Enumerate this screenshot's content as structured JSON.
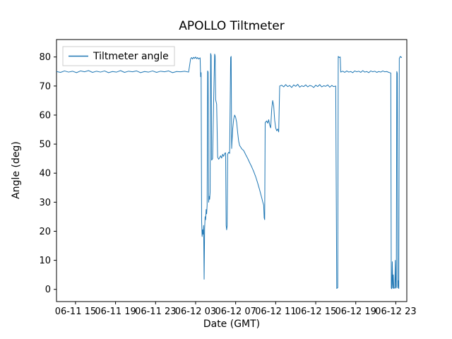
{
  "figure": {
    "title": "APOLLO Tiltmeter",
    "xlabel": "Date (GMT)",
    "ylabel": "Angle (deg)",
    "legend_label": "Tiltmeter angle",
    "line_color": "#1f77b4",
    "legend_border_color": "#cccccc",
    "axes_color": "#000000",
    "background_color": "#ffffff"
  },
  "chart_data": {
    "type": "line",
    "title": "APOLLO Tiltmeter",
    "xlabel": "Date (GMT)",
    "ylabel": "Angle (deg)",
    "legend": [
      "Tiltmeter angle"
    ],
    "legend_position": "upper left",
    "grid": false,
    "x_tick_labels": [
      "06-11 15",
      "06-11 19",
      "06-11 23",
      "06-12 03",
      "06-12 07",
      "06-12 11",
      "06-12 15",
      "06-12 19",
      "06-12 23"
    ],
    "x_tick_positions_hours": [
      0,
      4,
      8,
      12,
      16,
      20,
      24,
      28,
      32
    ],
    "x_unit": "hours relative to first x tick (06-11 15)",
    "xlim_hours": [
      -1.9,
      33.1
    ],
    "y_ticks": [
      0,
      10,
      20,
      30,
      40,
      50,
      60,
      70,
      80
    ],
    "ylim": [
      -4.2,
      86
    ],
    "series": [
      {
        "name": "Tiltmeter angle",
        "color": "#1f77b4",
        "points": [
          [
            -1.9,
            75.0
          ],
          [
            -1.5,
            74.7
          ],
          [
            -1.1,
            75.2
          ],
          [
            -0.7,
            74.8
          ],
          [
            -0.3,
            75.1
          ],
          [
            0.1,
            74.6
          ],
          [
            0.5,
            75.2
          ],
          [
            0.9,
            74.9
          ],
          [
            1.3,
            75.3
          ],
          [
            1.7,
            74.7
          ],
          [
            2.1,
            75.1
          ],
          [
            2.5,
            74.8
          ],
          [
            2.9,
            75.2
          ],
          [
            3.3,
            74.6
          ],
          [
            3.7,
            75.0
          ],
          [
            4.1,
            74.8
          ],
          [
            4.5,
            75.3
          ],
          [
            4.9,
            74.7
          ],
          [
            5.3,
            75.1
          ],
          [
            5.7,
            74.9
          ],
          [
            6.1,
            75.2
          ],
          [
            6.5,
            74.6
          ],
          [
            6.9,
            75.0
          ],
          [
            7.3,
            74.8
          ],
          [
            7.7,
            75.2
          ],
          [
            8.1,
            74.7
          ],
          [
            8.5,
            75.1
          ],
          [
            8.9,
            74.9
          ],
          [
            9.3,
            75.2
          ],
          [
            9.7,
            74.6
          ],
          [
            10.1,
            75.0
          ],
          [
            10.5,
            74.9
          ],
          [
            10.9,
            75.1
          ],
          [
            11.3,
            74.8
          ],
          [
            11.5,
            79.4
          ],
          [
            11.6,
            79.8
          ],
          [
            11.7,
            79.3
          ],
          [
            11.8,
            79.9
          ],
          [
            11.9,
            79.5
          ],
          [
            12.0,
            80.0
          ],
          [
            12.1,
            79.4
          ],
          [
            12.2,
            79.8
          ],
          [
            12.3,
            79.3
          ],
          [
            12.45,
            79.7
          ],
          [
            12.5,
            73.2
          ],
          [
            12.55,
            74.6
          ],
          [
            12.6,
            23.5
          ],
          [
            12.65,
            18.2
          ],
          [
            12.7,
            20.5
          ],
          [
            12.75,
            19.0
          ],
          [
            12.8,
            22.0
          ],
          [
            12.85,
            3.5
          ],
          [
            12.9,
            21.0
          ],
          [
            12.95,
            25.0
          ],
          [
            13.0,
            24.0
          ],
          [
            13.05,
            27.5
          ],
          [
            13.1,
            26.0
          ],
          [
            13.15,
            29.0
          ],
          [
            13.2,
            75.2
          ],
          [
            13.25,
            74.8
          ],
          [
            13.3,
            30.0
          ],
          [
            13.35,
            32.0
          ],
          [
            13.4,
            31.0
          ],
          [
            13.45,
            33.5
          ],
          [
            13.5,
            81.2
          ],
          [
            13.55,
            80.6
          ],
          [
            13.6,
            44.5
          ],
          [
            13.7,
            45.0
          ],
          [
            13.8,
            65.0
          ],
          [
            13.9,
            81.0
          ],
          [
            13.95,
            80.4
          ],
          [
            14.0,
            65.3
          ],
          [
            14.1,
            63.8
          ],
          [
            14.2,
            45.5
          ],
          [
            14.3,
            44.8
          ],
          [
            14.4,
            45.3
          ],
          [
            14.5,
            46.0
          ],
          [
            14.6,
            45.2
          ],
          [
            14.7,
            46.5
          ],
          [
            14.8,
            45.8
          ],
          [
            14.9,
            46.8
          ],
          [
            15.0,
            47.0
          ],
          [
            15.05,
            22.0
          ],
          [
            15.1,
            20.5
          ],
          [
            15.15,
            21.8
          ],
          [
            15.2,
            46.5
          ],
          [
            15.3,
            47.2
          ],
          [
            15.4,
            46.8
          ],
          [
            15.5,
            79.8
          ],
          [
            15.55,
            80.2
          ],
          [
            15.6,
            48.5
          ],
          [
            15.7,
            55.0
          ],
          [
            15.8,
            58.5
          ],
          [
            15.9,
            60.0
          ],
          [
            16.0,
            59.2
          ],
          [
            16.1,
            57.5
          ],
          [
            16.2,
            54.0
          ],
          [
            16.3,
            51.0
          ],
          [
            16.4,
            49.5
          ],
          [
            16.5,
            49.0
          ],
          [
            16.6,
            48.4
          ],
          [
            16.8,
            47.8
          ],
          [
            17.0,
            46.4
          ],
          [
            17.2,
            45.1
          ],
          [
            17.4,
            43.6
          ],
          [
            17.6,
            42.2
          ],
          [
            17.8,
            40.6
          ],
          [
            18.0,
            38.8
          ],
          [
            18.2,
            36.6
          ],
          [
            18.4,
            34.2
          ],
          [
            18.6,
            31.6
          ],
          [
            18.7,
            30.2
          ],
          [
            18.8,
            29.0
          ],
          [
            18.85,
            24.6
          ],
          [
            18.9,
            24.0
          ],
          [
            18.95,
            57.4
          ],
          [
            19.1,
            58.0
          ],
          [
            19.2,
            57.2
          ],
          [
            19.3,
            58.4
          ],
          [
            19.4,
            56.6
          ],
          [
            19.5,
            55.6
          ],
          [
            19.6,
            62.0
          ],
          [
            19.7,
            65.0
          ],
          [
            19.8,
            63.2
          ],
          [
            19.9,
            58.2
          ],
          [
            20.0,
            55.6
          ],
          [
            20.1,
            54.6
          ],
          [
            20.2,
            55.2
          ],
          [
            20.3,
            54.2
          ],
          [
            20.4,
            70.0
          ],
          [
            20.6,
            70.3
          ],
          [
            20.8,
            69.7
          ],
          [
            21.0,
            70.5
          ],
          [
            21.2,
            69.8
          ],
          [
            21.4,
            70.2
          ],
          [
            21.6,
            69.5
          ],
          [
            21.8,
            70.4
          ],
          [
            22.0,
            69.9
          ],
          [
            22.2,
            70.6
          ],
          [
            22.4,
            69.6
          ],
          [
            22.6,
            70.1
          ],
          [
            22.8,
            69.8
          ],
          [
            23.0,
            70.4
          ],
          [
            23.2,
            69.7
          ],
          [
            23.4,
            70.2
          ],
          [
            23.6,
            70.0
          ],
          [
            23.8,
            69.5
          ],
          [
            24.0,
            70.3
          ],
          [
            24.2,
            69.8
          ],
          [
            24.4,
            70.5
          ],
          [
            24.6,
            69.7
          ],
          [
            24.8,
            70.1
          ],
          [
            25.0,
            69.9
          ],
          [
            25.2,
            70.4
          ],
          [
            25.4,
            69.6
          ],
          [
            25.6,
            70.2
          ],
          [
            25.8,
            69.8
          ],
          [
            26.0,
            70.0
          ],
          [
            26.1,
            0.3
          ],
          [
            26.2,
            0.6
          ],
          [
            26.25,
            80.2
          ],
          [
            26.35,
            79.8
          ],
          [
            26.45,
            80.0
          ],
          [
            26.5,
            74.8
          ],
          [
            26.7,
            75.1
          ],
          [
            26.9,
            74.7
          ],
          [
            27.1,
            75.2
          ],
          [
            27.3,
            74.8
          ],
          [
            27.5,
            75.0
          ],
          [
            27.7,
            74.6
          ],
          [
            27.9,
            75.2
          ],
          [
            28.1,
            74.9
          ],
          [
            28.3,
            75.1
          ],
          [
            28.5,
            74.7
          ],
          [
            28.7,
            75.3
          ],
          [
            28.9,
            74.8
          ],
          [
            29.1,
            75.0
          ],
          [
            29.3,
            74.6
          ],
          [
            29.5,
            75.2
          ],
          [
            29.7,
            74.9
          ],
          [
            29.9,
            75.1
          ],
          [
            30.1,
            74.7
          ],
          [
            30.3,
            75.0
          ],
          [
            30.5,
            74.8
          ],
          [
            30.7,
            75.2
          ],
          [
            30.9,
            74.9
          ],
          [
            31.1,
            75.0
          ],
          [
            31.3,
            74.7
          ],
          [
            31.5,
            74.5
          ],
          [
            31.55,
            0.4
          ],
          [
            31.6,
            0.2
          ],
          [
            31.65,
            9.5
          ],
          [
            31.7,
            0.5
          ],
          [
            31.75,
            5.0
          ],
          [
            31.8,
            0.3
          ],
          [
            31.9,
            0.6
          ],
          [
            31.95,
            10.0
          ],
          [
            32.0,
            0.4
          ],
          [
            32.05,
            0.8
          ],
          [
            32.1,
            75.0
          ],
          [
            32.15,
            74.4
          ],
          [
            32.2,
            0.5
          ],
          [
            32.25,
            3.0
          ],
          [
            32.3,
            0.3
          ],
          [
            32.35,
            79.5
          ],
          [
            32.45,
            80.2
          ],
          [
            32.55,
            79.8
          ],
          [
            32.6,
            80.0
          ]
        ]
      }
    ]
  }
}
